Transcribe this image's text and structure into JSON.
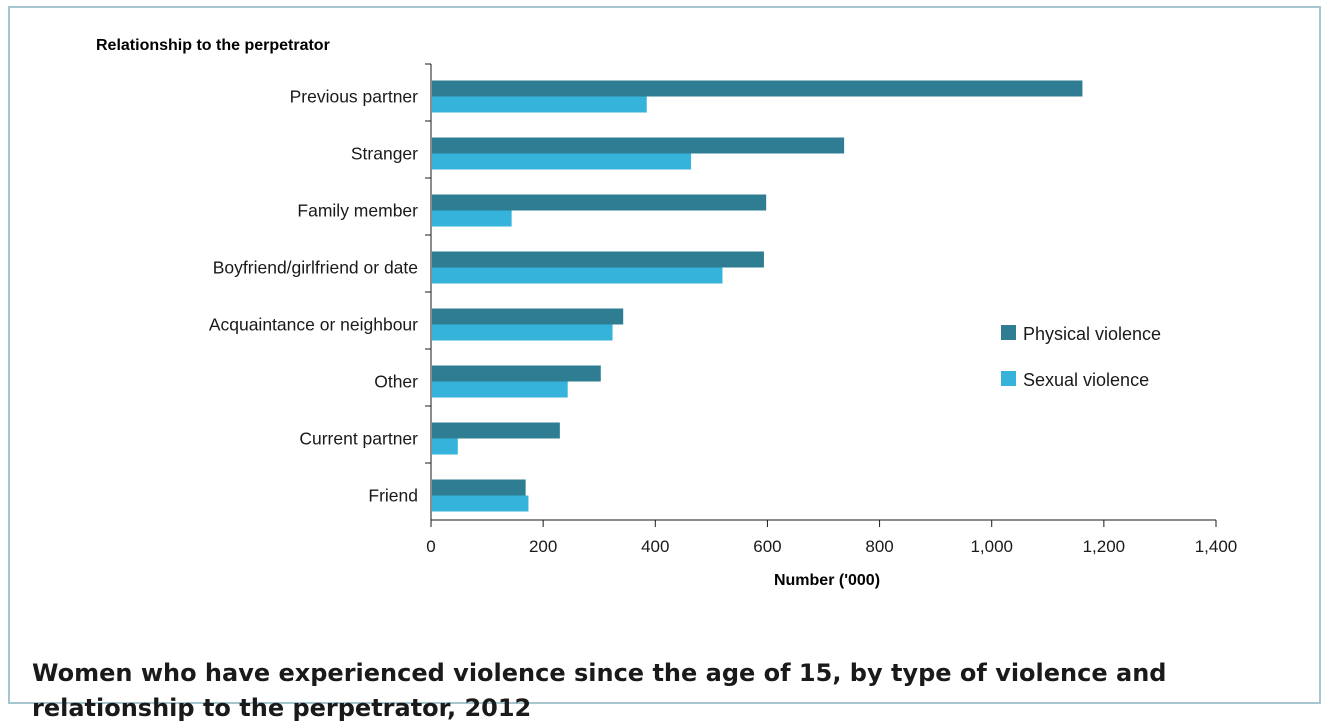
{
  "chart_data": {
    "type": "bar",
    "orientation": "horizontal",
    "title": "Women who have experienced violence since the age of 15, by type of violence and relationship to the perpetrator, 2012",
    "ylabel": "Relationship to the perpetrator",
    "xlabel": "Number ('000)",
    "categories": [
      "Previous partner",
      "Stranger",
      "Family member",
      "Boyfriend/girlfriend or date",
      "Acquaintance or neighbour",
      "Other",
      "Current partner",
      "Friend"
    ],
    "series": [
      {
        "name": "Physical violence",
        "color": "#2e7d92",
        "values": [
          1160,
          735,
          596,
          592,
          341,
          301,
          228,
          167
        ]
      },
      {
        "name": "Sexual violence",
        "color": "#35b3da",
        "values": [
          383,
          462,
          142,
          518,
          322,
          242,
          46,
          172
        ]
      }
    ],
    "xlim": [
      0,
      1400
    ],
    "xticks": [
      "0",
      "200",
      "400",
      "600",
      "800",
      "1,000",
      "1,200",
      "1,400"
    ],
    "grid": false,
    "legend_position": "right"
  }
}
